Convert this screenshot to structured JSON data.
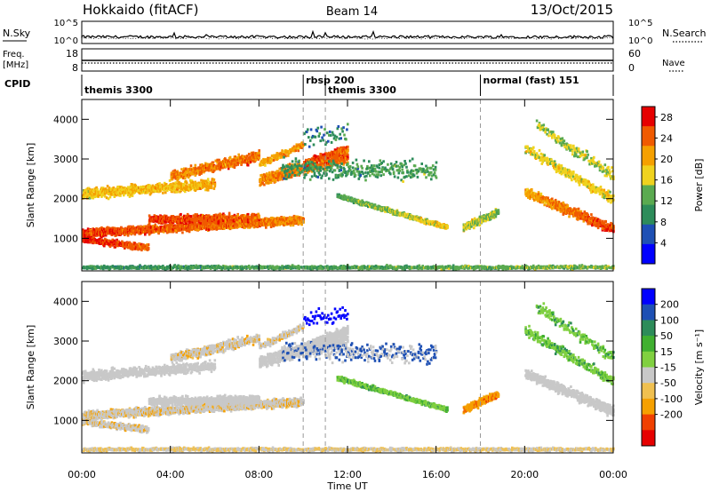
{
  "header": {
    "station": "Hokkaido (fitACF)",
    "beam": "Beam 14",
    "date": "13/Oct/2015"
  },
  "noise_panel": {
    "left_label": "N.Sky",
    "right_label": "N.Search",
    "left_ticks": [
      "10^5",
      "10^0"
    ],
    "right_ticks": [
      "10^5",
      "10^0"
    ]
  },
  "freq_panel": {
    "left_label_1": "Freq.",
    "left_label_2": "[MHz]",
    "right_label": "Nave",
    "left_ticks": [
      "18",
      "8"
    ],
    "right_ticks": [
      "60",
      "0"
    ]
  },
  "cpid_panel": {
    "label": "CPID",
    "modes": [
      {
        "name": "themis 3300",
        "start_hour": 0
      },
      {
        "name": "rbsp 200",
        "start_hour": 10
      },
      {
        "name": "themis 3300",
        "start_hour": 11
      },
      {
        "name": "normal (fast) 151",
        "start_hour": 18
      }
    ]
  },
  "colors": {
    "power_scale": [
      "#0000ff",
      "#1e50b4",
      "#2d8c5a",
      "#5aaa50",
      "#f0d21e",
      "#f5a000",
      "#f05a00",
      "#e60000"
    ],
    "velocity_scale": [
      "#e60000",
      "#f04000",
      "#f5a000",
      "#f0c050",
      "#c8c8c8",
      "#80d040",
      "#40b030",
      "#2d8c5a",
      "#1e50b4",
      "#0000ff"
    ]
  },
  "chart_data": [
    {
      "type": "heatmap",
      "panel": "power",
      "xlabel": "Time UT",
      "ylabel": "Slant Range [km]",
      "xlim": [
        0,
        24
      ],
      "ylim": [
        180,
        4500
      ],
      "x_ticks": [
        "00:00",
        "04:00",
        "08:00",
        "12:00",
        "16:00",
        "20:00",
        "00:00"
      ],
      "y_ticks": [
        1000,
        2000,
        3000,
        4000
      ],
      "colorbar_label": "Power [dB]",
      "colorbar_ticks": [
        4,
        8,
        12,
        16,
        20,
        24,
        28
      ],
      "colorbar_range": [
        0,
        30
      ]
    },
    {
      "type": "heatmap",
      "panel": "velocity",
      "xlabel": "Time UT",
      "ylabel": "Slant Range [km]",
      "xlim": [
        0,
        24
      ],
      "ylim": [
        180,
        4500
      ],
      "x_ticks": [
        "00:00",
        "04:00",
        "08:00",
        "12:00",
        "16:00",
        "20:00",
        "00:00"
      ],
      "y_ticks": [
        1000,
        2000,
        3000,
        4000
      ],
      "colorbar_label": "Velocity [m s⁻¹]",
      "colorbar_ticks": [
        200,
        100,
        50,
        15,
        -15,
        -50,
        -100,
        -200
      ]
    }
  ]
}
